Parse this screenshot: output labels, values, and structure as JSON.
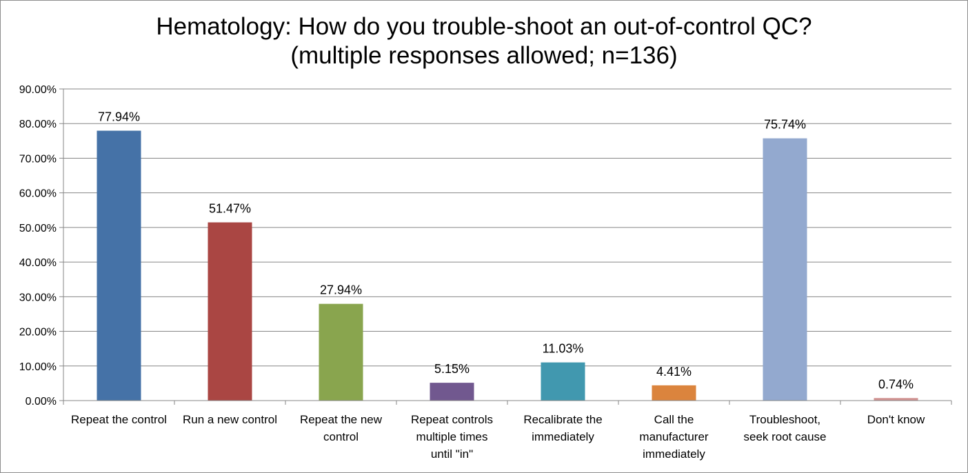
{
  "chart_data": {
    "type": "bar",
    "title_line1": "Hematology: How do you trouble-shoot an out-of-control QC?",
    "title_line2": "(multiple responses allowed; n=136)",
    "categories": [
      [
        "Repeat the control"
      ],
      [
        "Run  a new control"
      ],
      [
        "Repeat the new",
        "control"
      ],
      [
        "Repeat controls",
        "multiple times",
        "until  \"in\""
      ],
      [
        "Recalibrate the",
        "immediately"
      ],
      [
        "Call the",
        "manufacturer",
        "immediately"
      ],
      [
        "Troubleshoot,",
        "seek root cause"
      ],
      [
        "Don't know"
      ]
    ],
    "values": [
      77.94,
      51.47,
      27.94,
      5.15,
      11.03,
      4.41,
      75.74,
      0.74
    ],
    "data_labels": [
      "77.94%",
      "51.47%",
      "27.94%",
      "5.15%",
      "11.03%",
      "4.41%",
      "75.74%",
      "0.74%"
    ],
    "colors": [
      "#4572A7",
      "#AA4643",
      "#89A54E",
      "#71588F",
      "#4198AF",
      "#DB843D",
      "#93A9CF",
      "#D19392"
    ],
    "ylim": [
      0,
      90
    ],
    "ytick_labels": [
      "0.00%",
      "10.00%",
      "20.00%",
      "30.00%",
      "40.00%",
      "50.00%",
      "60.00%",
      "70.00%",
      "80.00%",
      "90.00%"
    ],
    "xlabel": "",
    "ylabel": "",
    "grid": true
  }
}
